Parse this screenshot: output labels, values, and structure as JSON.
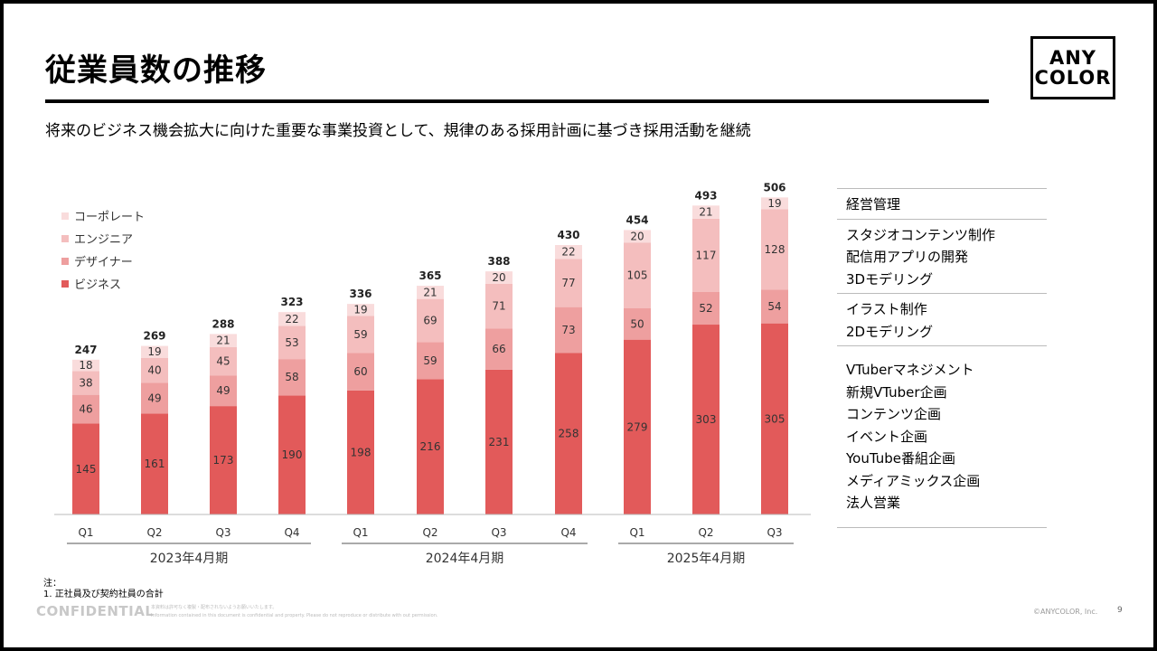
{
  "title": "従業員数の推移",
  "subtitle": "将来のビジネス機会拡大に向けた重要な事業投資として、規律のある採用計画に基づき採用活動を継続",
  "logo": {
    "line1": "ANY",
    "line2": "COLOR"
  },
  "colors": {
    "business": "#E25A5A",
    "designer": "#EE9F9F",
    "engineer": "#F4BEBE",
    "corporate": "#F9DCDC"
  },
  "chart_data": {
    "type": "bar",
    "stacked": true,
    "categories": [
      "Q1",
      "Q2",
      "Q3",
      "Q4",
      "Q1",
      "Q2",
      "Q3",
      "Q4",
      "Q1",
      "Q2",
      "Q3"
    ],
    "groups": [
      {
        "label": "2023年4月期",
        "count": 4
      },
      {
        "label": "2024年4月期",
        "count": 4
      },
      {
        "label": "2025年4月期",
        "count": 3
      }
    ],
    "series": [
      {
        "name": "ビジネス",
        "values": [
          145,
          161,
          173,
          190,
          198,
          216,
          231,
          258,
          279,
          303,
          305
        ]
      },
      {
        "name": "デザイナー",
        "values": [
          46,
          49,
          49,
          58,
          60,
          59,
          66,
          73,
          50,
          52,
          54
        ]
      },
      {
        "name": "エンジニア",
        "values": [
          38,
          40,
          45,
          53,
          59,
          69,
          71,
          77,
          105,
          117,
          128
        ]
      },
      {
        "name": "コーポレート",
        "values": [
          18,
          19,
          21,
          22,
          19,
          21,
          20,
          22,
          20,
          21,
          19
        ]
      }
    ],
    "totals": [
      247,
      269,
      288,
      323,
      336,
      365,
      388,
      430,
      454,
      493,
      506
    ],
    "legend_order": [
      "コーポレート",
      "エンジニア",
      "デザイナー",
      "ビジネス"
    ],
    "legend_position": "top-left",
    "ylim": [
      0,
      520
    ],
    "grid": false
  },
  "right_panel": [
    {
      "items": [
        "経営管理"
      ]
    },
    {
      "items": [
        "スタジオコンテンツ制作",
        "配信用アプリの開発",
        "3Dモデリング"
      ]
    },
    {
      "items": [
        "イラスト制作",
        "2Dモデリング"
      ]
    },
    {
      "items": [
        "VTuberマネジメント",
        "新規VTuber企画",
        "コンテンツ企画",
        "イベント企画",
        "YouTube番組企画",
        "メディアミックス企画",
        "法人営業"
      ]
    }
  ],
  "notes": {
    "label": "注：",
    "line1": "1. 正社員及び契約社員の合計"
  },
  "footer": {
    "confidential": "CONFIDENTIAL",
    "fine1": "本資料は許可なく複製・配布されないようお願いいたします。",
    "fine2": "Information contained in this document is confidential and property. Please do not reproduce or distribute with out permission.",
    "copyright": "©ANYCOLOR, Inc.",
    "page": "9"
  }
}
